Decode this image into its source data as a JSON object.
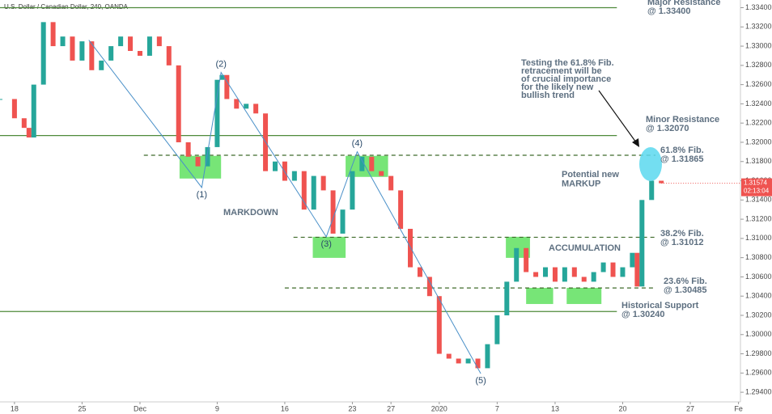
{
  "chart_data": {
    "type": "price",
    "title": "U.S. Dollar / Canadian Dollar, 240, OANDA",
    "series": [
      {
        "name": "USD/CAD",
        "up_color": "#26a69a",
        "down_color": "#ef5350",
        "x": [
          -1.5,
          0,
          1,
          1.5,
          2,
          3,
          4,
          5,
          6,
          7,
          8,
          9,
          10,
          11,
          12,
          13,
          14,
          15,
          16,
          17,
          18,
          19,
          20,
          21,
          21.5,
          22,
          23,
          24,
          25,
          26,
          27,
          28,
          29,
          30,
          31,
          32,
          33,
          34,
          35,
          36,
          37,
          38,
          39,
          40,
          41,
          42,
          43,
          44,
          45,
          46,
          47,
          48,
          49,
          50,
          51,
          52,
          53,
          54,
          55,
          56,
          57,
          58,
          59,
          60,
          61,
          62,
          63,
          64,
          64.5,
          65,
          66,
          67
        ],
        "values": [
          1.3245,
          1.3225,
          1.3215,
          1.3205,
          1.326,
          1.3325,
          1.33,
          1.331,
          1.3285,
          1.3305,
          1.3275,
          1.3285,
          1.33,
          1.331,
          1.3295,
          1.329,
          1.331,
          1.33,
          1.328,
          1.32,
          1.3185,
          1.3175,
          1.3195,
          1.3265,
          1.327,
          1.3245,
          1.3235,
          1.324,
          1.323,
          1.317,
          1.318,
          1.316,
          1.317,
          1.313,
          1.3165,
          1.315,
          1.3105,
          1.313,
          1.317,
          1.3185,
          1.317,
          1.3165,
          1.315,
          1.311,
          1.307,
          1.306,
          1.304,
          1.298,
          1.2975,
          1.297,
          1.2975,
          1.2965,
          1.299,
          1.302,
          1.3055,
          1.309,
          1.3065,
          1.306,
          1.307,
          1.3055,
          1.307,
          1.306,
          1.3055,
          1.3065,
          1.3075,
          1.306,
          1.307,
          1.3085,
          1.305,
          1.314,
          1.316,
          1.31574
        ]
      },
      {
        "name": "wave",
        "color": "#4a90c8",
        "x": [
          7.7,
          19.4,
          21.4,
          32.3,
          35.5,
          48.3
        ],
        "values": [
          1.33063,
          1.3153,
          1.32726,
          1.31017,
          1.31901,
          1.29594
        ],
        "point_labels": [
          null,
          "(1)",
          "(2)",
          "(3)",
          "(4)",
          "(5)"
        ]
      }
    ],
    "last_price": 1.31574,
    "timer": "02:13:04",
    "levels": [
      {
        "name": "Major Resistance",
        "label": "@ 1.33400",
        "value": 1.334,
        "style": "solid",
        "x": [
          -1.5,
          62.4
        ]
      },
      {
        "name": "Minor Resistance",
        "label": "@ 1.32070",
        "value": 1.3207,
        "style": "solid",
        "x": [
          -1.5,
          62.4
        ]
      },
      {
        "name": "61.8% Fib.",
        "label": "@ 1.31865",
        "value": 1.31865,
        "style": "dashed",
        "x": [
          13.4,
          66.4
        ]
      },
      {
        "name": "38.2% Fib.",
        "label": "@ 1.31012",
        "value": 1.31012,
        "style": "dashed",
        "x": [
          28.9,
          66.4
        ]
      },
      {
        "name": "23.6% Fib.",
        "label": "@ 1.30485",
        "value": 1.30485,
        "style": "dashed",
        "x": [
          28,
          66.4
        ]
      },
      {
        "name": "Historical Support",
        "label": "@ 1.30240",
        "value": 1.3024,
        "style": "solid",
        "x": [
          -1.5,
          62.4
        ]
      }
    ],
    "zones": [
      {
        "x": [
          17.1,
          21.4
        ],
        "y": [
          1.31623,
          1.31859
        ]
      },
      {
        "x": [
          34.3,
          38.7
        ],
        "y": [
          1.3164,
          1.31859
        ]
      },
      {
        "x": [
          30.9,
          34.3
        ],
        "y": [
          1.30798,
          1.31017
        ]
      },
      {
        "x": [
          50.9,
          53.4
        ],
        "y": [
          1.30798,
          1.31017
        ]
      },
      {
        "x": [
          53.0,
          55.8
        ],
        "y": [
          1.30318,
          1.30486
        ]
      },
      {
        "x": [
          57.2,
          60.8
        ],
        "y": [
          1.30318,
          1.30486
        ]
      }
    ],
    "annotations": [
      {
        "lines": [
          "MARKDOWN"
        ]
      },
      {
        "lines": [
          "ACCUMULATION"
        ]
      },
      {
        "lines": [
          "Potential new",
          "MARKUP"
        ]
      },
      {
        "lines": [
          "Testing the 61.8% Fib.",
          "retracement will be",
          "of crucial importance",
          "for the likely new",
          "bullish trend"
        ]
      }
    ],
    "xlim": [
      -1.5,
      75.2
    ],
    "ylim": [
      1.293,
      1.3348
    ],
    "xticks": [
      {
        "value": 0,
        "label": "18"
      },
      {
        "value": 7,
        "label": "25"
      },
      {
        "value": 13,
        "label": "Dec"
      },
      {
        "value": 21,
        "label": "9"
      },
      {
        "value": 28,
        "label": "16"
      },
      {
        "value": 35,
        "label": "23"
      },
      {
        "value": 39,
        "label": "27"
      },
      {
        "value": 44,
        "label": "2020"
      },
      {
        "value": 50,
        "label": "7"
      },
      {
        "value": 56,
        "label": "13"
      },
      {
        "value": 63,
        "label": "20"
      },
      {
        "value": 70,
        "label": "27"
      },
      {
        "value": 75,
        "label": "Fe"
      }
    ],
    "yticks": [
      {
        "value": 1.334,
        "label": "1.33400"
      },
      {
        "value": 1.332,
        "label": "1.33200"
      },
      {
        "value": 1.33,
        "label": "1.33000"
      },
      {
        "value": 1.328,
        "label": "1.32800"
      },
      {
        "value": 1.326,
        "label": "1.32600"
      },
      {
        "value": 1.324,
        "label": "1.32400"
      },
      {
        "value": 1.322,
        "label": "1.32200"
      },
      {
        "value": 1.32,
        "label": "1.32000"
      },
      {
        "value": 1.318,
        "label": "1.31800"
      },
      {
        "value": 1.316,
        "label": "1.31600"
      },
      {
        "value": 1.314,
        "label": "1.31400"
      },
      {
        "value": 1.312,
        "label": "1.31200"
      },
      {
        "value": 1.31,
        "label": "1.31000"
      },
      {
        "value": 1.308,
        "label": "1.30800"
      },
      {
        "value": 1.306,
        "label": "1.30600"
      },
      {
        "value": 1.304,
        "label": "1.30400"
      },
      {
        "value": 1.302,
        "label": "1.30200"
      },
      {
        "value": 1.3,
        "label": "1.30000"
      },
      {
        "value": 1.298,
        "label": "1.29800"
      },
      {
        "value": 1.296,
        "label": "1.29600"
      },
      {
        "value": 1.294,
        "label": "1.29400"
      }
    ]
  }
}
